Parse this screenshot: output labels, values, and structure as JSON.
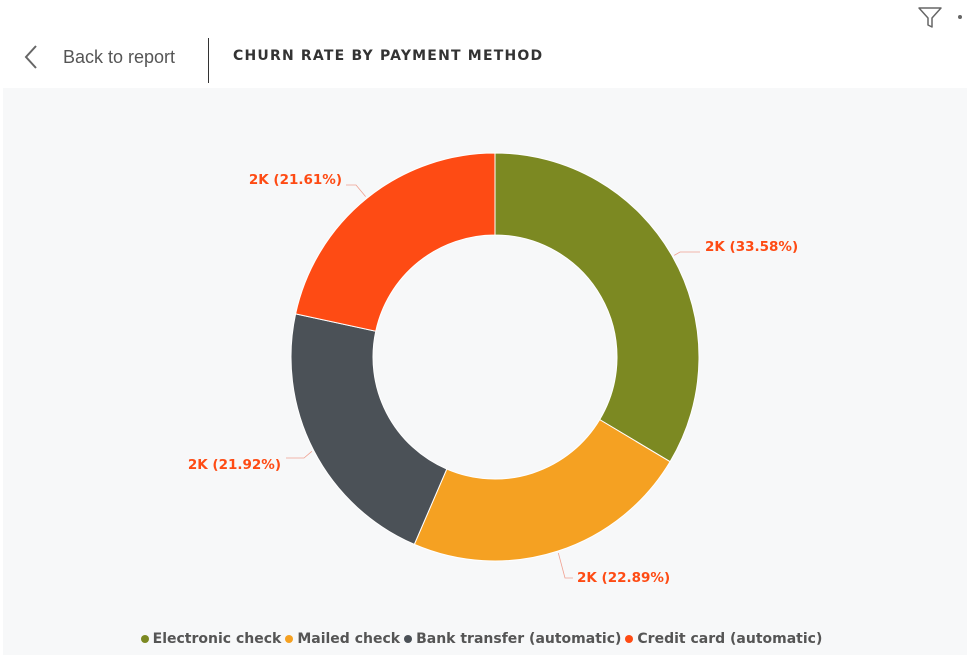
{
  "header": {
    "back_label": "Back to report",
    "title": "CHURN RATE BY PAYMENT METHOD",
    "filter_icon": "filter-icon",
    "back_icon": "chevron-left-icon"
  },
  "chart_data": {
    "type": "pie",
    "style": "donut",
    "legend_position": "bottom-center",
    "slices": [
      {
        "name": "Electronic check",
        "percent": 33.58,
        "label": "2K (33.58%)",
        "color": "#7c8922"
      },
      {
        "name": "Mailed check",
        "percent": 22.89,
        "label": "2K (22.89%)",
        "color": "#f5a122"
      },
      {
        "name": "Bank transfer (automatic)",
        "percent": 21.92,
        "label": "2K (21.92%)",
        "color": "#4b5157"
      },
      {
        "name": "Credit card (automatic)",
        "percent": 21.61,
        "label": "2K (21.61%)",
        "color": "#fe4b14"
      }
    ],
    "label_color": "#fe4b14"
  }
}
